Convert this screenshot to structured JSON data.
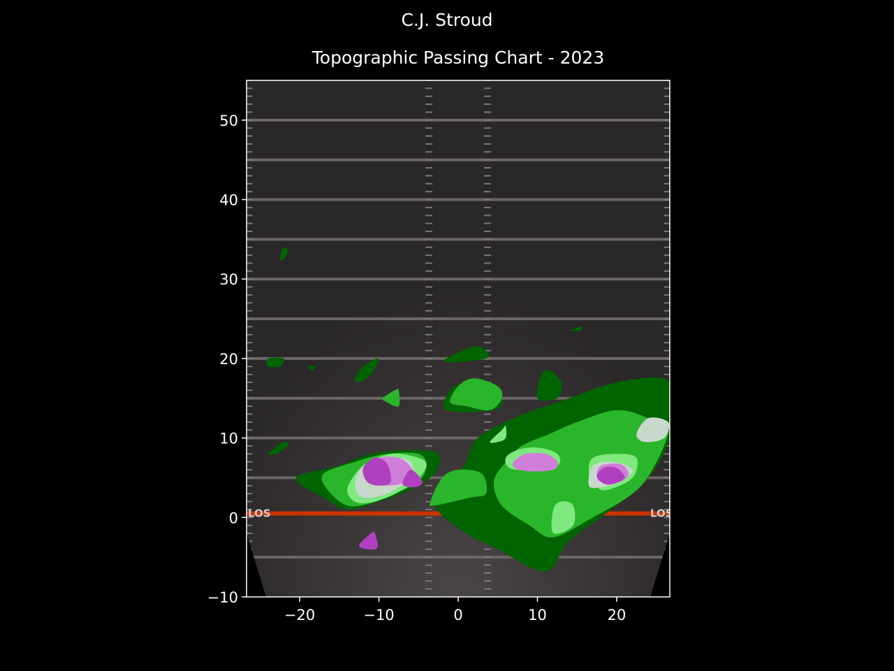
{
  "figure": {
    "supertitle": "C.J. Stroud",
    "title": "Topographic Passing Chart - 2023"
  },
  "chart_data": {
    "type": "contour",
    "xlim": [
      -26.7,
      26.7
    ],
    "ylim": [
      -10,
      55
    ],
    "xticks": [
      -20,
      -10,
      0,
      10,
      20
    ],
    "yticks": [
      -10,
      0,
      10,
      20,
      30,
      40,
      50
    ],
    "xtick_labels": [
      "−20",
      "−10",
      "0",
      "10",
      "20"
    ],
    "ytick_labels": [
      "−10",
      "0",
      "10",
      "20",
      "30",
      "40",
      "50"
    ],
    "grid": false,
    "background": "football field (yard lines every 5 yards)",
    "field_text": {
      "left": "LOS",
      "right": "LOS"
    },
    "line_of_scrimmage_y": 0.5,
    "yard_lines_y": [
      -5,
      5,
      10,
      15,
      20,
      25,
      30,
      35,
      40,
      45,
      50
    ],
    "hash_x": [
      -3.7,
      3.7
    ],
    "colors": {
      "level1": "#006400",
      "level2": "#2ab62a",
      "level3": "#7fe87f",
      "level4": "#c8d8cc",
      "level5": "#d07fd8",
      "level6": "#b040c0",
      "los_line": "#cc3300"
    },
    "density_regions": [
      {
        "level": 1,
        "points": [
          [
            -3,
            1.5
          ],
          [
            -1,
            4
          ],
          [
            1,
            7
          ],
          [
            2.5,
            10
          ],
          [
            7,
            12.5
          ],
          [
            14,
            15
          ],
          [
            20,
            17
          ],
          [
            26,
            17.5
          ],
          [
            26.7,
            15
          ],
          [
            26.7,
            10
          ],
          [
            24,
            5
          ],
          [
            20,
            1.5
          ],
          [
            14,
            -3
          ],
          [
            11,
            -6.8
          ],
          [
            5,
            -4
          ],
          [
            1,
            -2
          ]
        ]
      },
      {
        "level": 1,
        "points": [
          [
            -20.5,
            5
          ],
          [
            -15,
            6.5
          ],
          [
            -11,
            8
          ],
          [
            -6,
            8.5
          ],
          [
            -2.5,
            8
          ],
          [
            -3,
            5.5
          ],
          [
            -6,
            3.5
          ],
          [
            -10,
            2
          ],
          [
            -14,
            1
          ],
          [
            -17,
            2.5
          ]
        ]
      },
      {
        "level": 1,
        "points": [
          [
            -1.5,
            13.5
          ],
          [
            -1,
            16
          ],
          [
            1,
            17
          ],
          [
            3,
            17
          ],
          [
            5.5,
            15
          ],
          [
            4.5,
            13.5
          ]
        ]
      },
      {
        "level": 1,
        "points": [
          [
            -1.5,
            20
          ],
          [
            2,
            21.5
          ],
          [
            3.5,
            21
          ],
          [
            3.5,
            20
          ],
          [
            -1,
            19.5
          ]
        ]
      },
      {
        "level": 1,
        "points": [
          [
            10,
            15
          ],
          [
            10.5,
            18
          ],
          [
            11.5,
            18.5
          ],
          [
            13,
            17
          ],
          [
            12.5,
            15
          ]
        ]
      },
      {
        "level": 1,
        "points": [
          [
            -13,
            17.5
          ],
          [
            -12,
            19
          ],
          [
            -10,
            20
          ],
          [
            -11,
            18
          ],
          [
            -12.5,
            17
          ]
        ]
      },
      {
        "level": 1,
        "points": [
          [
            -24,
            20
          ],
          [
            -22,
            20
          ],
          [
            -22.5,
            19
          ],
          [
            -24,
            19
          ]
        ]
      },
      {
        "level": 1,
        "points": [
          [
            -24,
            8
          ],
          [
            -22,
            9.5
          ],
          [
            -21.5,
            9
          ],
          [
            -23,
            8
          ]
        ]
      },
      {
        "level": 1,
        "points": [
          [
            -22.5,
            32.5
          ],
          [
            -22,
            34
          ],
          [
            -21.5,
            33.5
          ],
          [
            -22,
            32.5
          ]
        ]
      },
      {
        "level": 1,
        "points": [
          [
            14,
            23.5
          ],
          [
            15.5,
            24
          ],
          [
            15.5,
            23.5
          ],
          [
            14,
            23.5
          ]
        ]
      },
      {
        "level": 1,
        "points": [
          [
            -19,
            19
          ],
          [
            -18,
            19
          ],
          [
            -18.5,
            18.5
          ]
        ]
      },
      {
        "level": 2,
        "points": [
          [
            -17,
            5.5
          ],
          [
            -13,
            7
          ],
          [
            -9,
            8
          ],
          [
            -5,
            8
          ],
          [
            -4,
            6.5
          ],
          [
            -5,
            4.5
          ],
          [
            -8,
            3
          ],
          [
            -11,
            1.8
          ],
          [
            -14,
            1.5
          ],
          [
            -16.5,
            3.5
          ]
        ]
      },
      {
        "level": 2,
        "points": [
          [
            4.5,
            4.5
          ],
          [
            6,
            7
          ],
          [
            8,
            9
          ],
          [
            11.5,
            10.5
          ],
          [
            15,
            12
          ],
          [
            20,
            13.5
          ],
          [
            24,
            12.5
          ],
          [
            26.5,
            11
          ],
          [
            24.5,
            6
          ],
          [
            22,
            3
          ],
          [
            17,
            0
          ],
          [
            12,
            -2.5
          ],
          [
            9,
            -1
          ],
          [
            5.5,
            1.5
          ]
        ]
      },
      {
        "level": 2,
        "points": [
          [
            -3.5,
            2
          ],
          [
            -2,
            5
          ],
          [
            0,
            6
          ],
          [
            3,
            5.5
          ],
          [
            3.5,
            3
          ],
          [
            1.5,
            2.5
          ],
          [
            -3,
            1.5
          ]
        ]
      },
      {
        "level": 2,
        "points": [
          [
            -1,
            14.5
          ],
          [
            0,
            16.5
          ],
          [
            2,
            17.5
          ],
          [
            5,
            16.5
          ],
          [
            5.5,
            15
          ],
          [
            4,
            13.5
          ],
          [
            1,
            14
          ]
        ]
      },
      {
        "level": 2,
        "points": [
          [
            -9.5,
            15
          ],
          [
            -8,
            16
          ],
          [
            -7.5,
            16
          ],
          [
            -7.5,
            14
          ],
          [
            -9,
            14.5
          ]
        ]
      },
      {
        "level": 3,
        "points": [
          [
            -14,
            3.5
          ],
          [
            -12,
            6.5
          ],
          [
            -8.5,
            8
          ],
          [
            -5,
            7.5
          ],
          [
            -4,
            6.5
          ],
          [
            -5.5,
            4.5
          ],
          [
            -9,
            2.5
          ],
          [
            -12.5,
            1.8
          ]
        ]
      },
      {
        "level": 3,
        "points": [
          [
            6,
            7.5
          ],
          [
            7.5,
            8.5
          ],
          [
            10,
            8.8
          ],
          [
            12.5,
            8
          ],
          [
            12.5,
            6.5
          ],
          [
            9,
            6
          ],
          [
            6.5,
            6.2
          ]
        ]
      },
      {
        "level": 3,
        "points": [
          [
            16.5,
            5.5
          ],
          [
            17,
            7.5
          ],
          [
            20,
            8
          ],
          [
            22.5,
            7.5
          ],
          [
            22,
            5
          ],
          [
            19,
            3.5
          ],
          [
            17.5,
            3.8
          ]
        ]
      },
      {
        "level": 3,
        "points": [
          [
            12,
            1
          ],
          [
            13,
            2
          ],
          [
            14.5,
            1.5
          ],
          [
            14.5,
            -1
          ],
          [
            12,
            -2
          ]
        ]
      },
      {
        "level": 3,
        "points": [
          [
            4,
            9.5
          ],
          [
            5.5,
            11
          ],
          [
            6,
            11.5
          ],
          [
            6,
            10
          ],
          [
            5,
            9.5
          ]
        ]
      },
      {
        "level": 4,
        "points": [
          [
            -13,
            4
          ],
          [
            -12,
            6.5
          ],
          [
            -8.5,
            7.5
          ],
          [
            -6,
            7
          ],
          [
            -6,
            5
          ],
          [
            -9,
            3
          ],
          [
            -12,
            2.5
          ]
        ]
      },
      {
        "level": 4,
        "points": [
          [
            22.5,
            10.5
          ],
          [
            24,
            12.5
          ],
          [
            26.5,
            12
          ],
          [
            26,
            10
          ],
          [
            23.5,
            9.5
          ]
        ]
      },
      {
        "level": 4,
        "points": [
          [
            16.5,
            4
          ],
          [
            17,
            6.5
          ],
          [
            19.5,
            7
          ],
          [
            22,
            6
          ],
          [
            20.5,
            4.5
          ],
          [
            18,
            3.8
          ]
        ]
      },
      {
        "level": 5,
        "points": [
          [
            -12,
            6
          ],
          [
            -10,
            7.5
          ],
          [
            -7,
            7.3
          ],
          [
            -5.5,
            5
          ],
          [
            -8.5,
            4
          ],
          [
            -11,
            4.5
          ]
        ]
      },
      {
        "level": 5,
        "points": [
          [
            7,
            7
          ],
          [
            8.5,
            8
          ],
          [
            11,
            8
          ],
          [
            12.5,
            7
          ],
          [
            12,
            6
          ],
          [
            9,
            5.8
          ],
          [
            7.2,
            6.2
          ]
        ]
      },
      {
        "level": 5,
        "points": [
          [
            17.5,
            5
          ],
          [
            18,
            6.5
          ],
          [
            20.5,
            6.7
          ],
          [
            21.5,
            5.5
          ],
          [
            20.5,
            4.5
          ],
          [
            18.5,
            4.3
          ]
        ]
      },
      {
        "level": 6,
        "points": [
          [
            -12,
            6.2
          ],
          [
            -10.5,
            7.5
          ],
          [
            -9,
            6.8
          ],
          [
            -8.5,
            4.5
          ],
          [
            -10,
            4
          ],
          [
            -11.5,
            4.5
          ]
        ]
      },
      {
        "level": 6,
        "points": [
          [
            -6,
            6
          ],
          [
            -4.5,
            4.5
          ],
          [
            -5.5,
            3.8
          ],
          [
            -7,
            4.2
          ]
        ]
      },
      {
        "level": 6,
        "points": [
          [
            17.5,
            5.3
          ],
          [
            18.5,
            6.3
          ],
          [
            20,
            6.2
          ],
          [
            21,
            5
          ],
          [
            19.5,
            4.2
          ],
          [
            18.3,
            4.3
          ]
        ]
      },
      {
        "level": 6,
        "points": [
          [
            -12.5,
            -3.5
          ],
          [
            -11,
            -2
          ],
          [
            -10.5,
            -2
          ],
          [
            -10.2,
            -3.8
          ],
          [
            -11.5,
            -4
          ]
        ]
      }
    ]
  }
}
